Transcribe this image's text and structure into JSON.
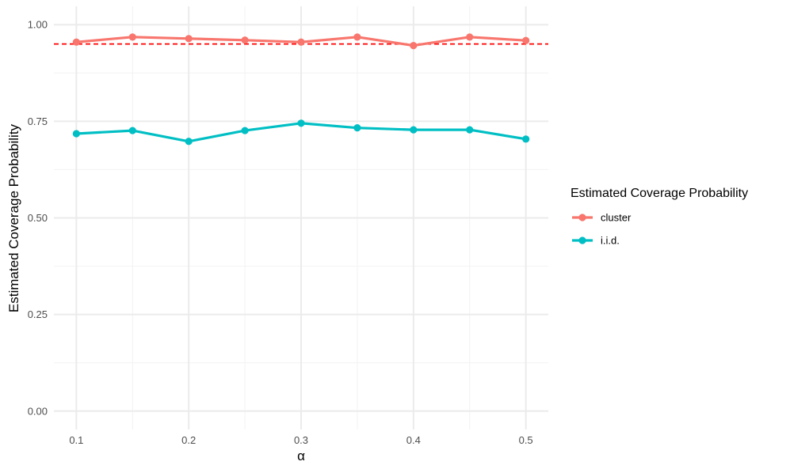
{
  "chart_data": {
    "type": "line",
    "title": "",
    "xlabel": "α",
    "ylabel": "Estimated Coverage Probability",
    "x": [
      0.1,
      0.15,
      0.2,
      0.25,
      0.3,
      0.35,
      0.4,
      0.45,
      0.5
    ],
    "x_ticks": [
      0.1,
      0.2,
      0.3,
      0.4,
      0.5
    ],
    "x_tick_labels": [
      "0.1",
      "0.2",
      "0.3",
      "0.4",
      "0.5"
    ],
    "y_ticks": [
      0,
      0.25,
      0.5,
      0.75,
      1.0
    ],
    "y_tick_labels": [
      "0.00",
      "0.25",
      "0.50",
      "0.75",
      "1.00"
    ],
    "xlim": [
      0.08,
      0.52
    ],
    "ylim": [
      -0.0475,
      1.0475
    ],
    "grid": true,
    "legend": {
      "title": "Estimated Coverage Probability",
      "position": "right"
    },
    "reference_line": {
      "y": 0.95,
      "style": "dashed",
      "color": "#ff0000"
    },
    "series": [
      {
        "name": "cluster",
        "color": "#F8766D",
        "values": [
          0.955,
          0.968,
          0.964,
          0.96,
          0.955,
          0.968,
          0.946,
          0.968,
          0.959
        ]
      },
      {
        "name": "i.i.d.",
        "color": "#00BFC4",
        "values": [
          0.718,
          0.726,
          0.698,
          0.726,
          0.745,
          0.733,
          0.728,
          0.728,
          0.704
        ]
      }
    ]
  }
}
